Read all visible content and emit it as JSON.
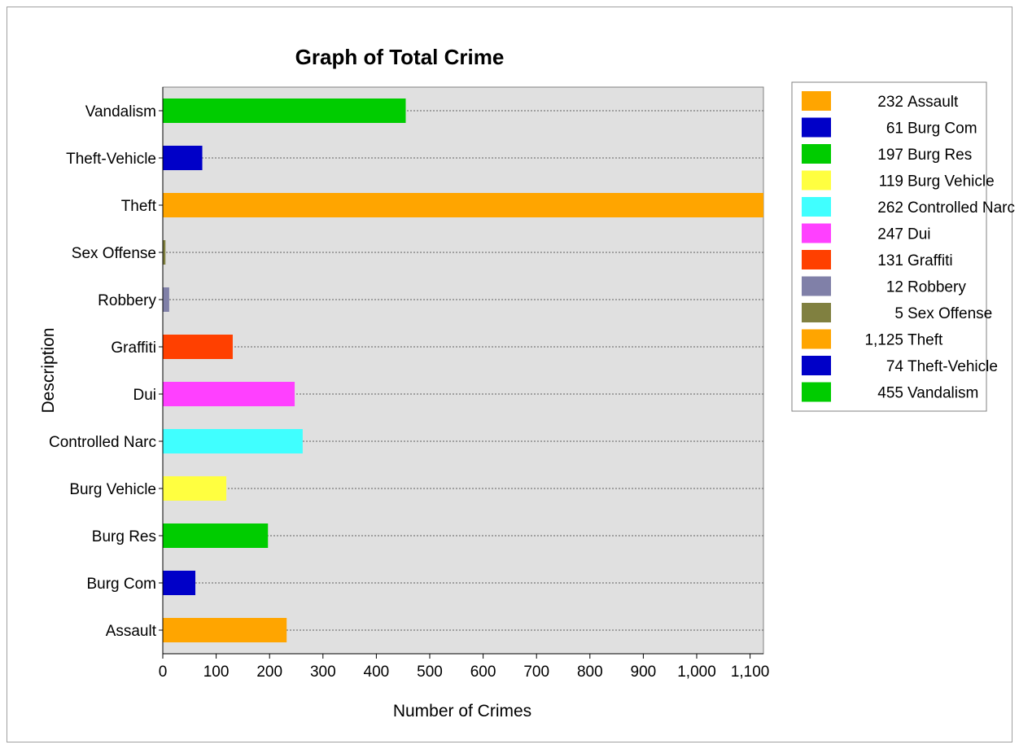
{
  "chart_data": {
    "type": "bar",
    "orientation": "horizontal",
    "title": "Graph of Total Crime",
    "xlabel": "Number of Crimes",
    "ylabel": "Description",
    "xlim": [
      0,
      1125
    ],
    "x_ticks": [
      0,
      100,
      200,
      300,
      400,
      500,
      600,
      700,
      800,
      900,
      1000,
      1100
    ],
    "x_tick_labels": [
      "0",
      "100",
      "200",
      "300",
      "400",
      "500",
      "600",
      "700",
      "800",
      "900",
      "1,000",
      "1,100"
    ],
    "grid": true,
    "legend_position": "right",
    "categories": [
      "Assault",
      "Burg Com",
      "Burg Res",
      "Burg Vehicle",
      "Controlled Narc",
      "Dui",
      "Graffiti",
      "Robbery",
      "Sex Offense",
      "Theft",
      "Theft-Vehicle",
      "Vandalism"
    ],
    "values": [
      232,
      61,
      197,
      119,
      262,
      247,
      131,
      12,
      5,
      1125,
      74,
      455
    ],
    "colors": [
      "#ffa500",
      "#0000c8",
      "#00cc00",
      "#ffff40",
      "#40ffff",
      "#ff40ff",
      "#ff4000",
      "#8080a8",
      "#808040",
      "#ffa500",
      "#0000c8",
      "#00cc00"
    ],
    "legend": [
      {
        "count": "232",
        "name": "Assault"
      },
      {
        "count": "61",
        "name": "Burg Com"
      },
      {
        "count": "197",
        "name": "Burg Res"
      },
      {
        "count": "119",
        "name": "Burg Vehicle"
      },
      {
        "count": "262",
        "name": "Controlled Narc"
      },
      {
        "count": "247",
        "name": "Dui"
      },
      {
        "count": "131",
        "name": "Graffiti"
      },
      {
        "count": "12",
        "name": "Robbery"
      },
      {
        "count": "5",
        "name": "Sex Offense"
      },
      {
        "count": "1,125",
        "name": "Theft"
      },
      {
        "count": "74",
        "name": "Theft-Vehicle"
      },
      {
        "count": "455",
        "name": "Vandalism"
      }
    ],
    "plot_background": "#e0e0e0"
  }
}
